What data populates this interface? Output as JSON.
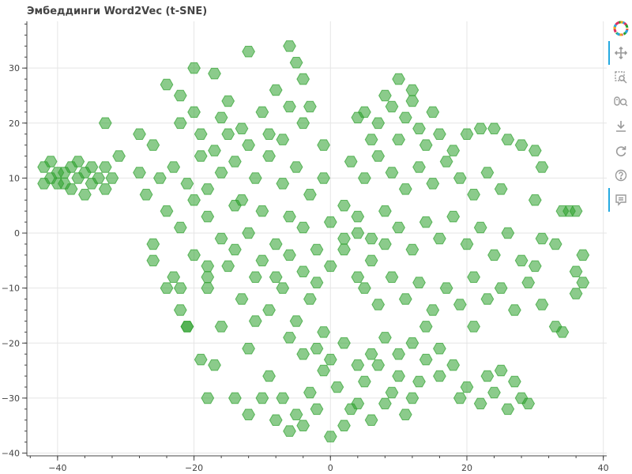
{
  "chart_title": "Эмбеддинги Word2Vec (t-SNE)",
  "toolbar": {
    "items": [
      {
        "name": "bokeh-logo-icon",
        "active": false
      },
      {
        "name": "pan-icon",
        "active": true
      },
      {
        "name": "box-zoom-icon",
        "active": false
      },
      {
        "name": "wheel-zoom-icon",
        "active": false
      },
      {
        "name": "save-icon",
        "active": false
      },
      {
        "name": "reset-icon",
        "active": false
      },
      {
        "name": "help-icon",
        "active": false
      },
      {
        "name": "hover-icon",
        "active": true
      }
    ]
  },
  "chart_data": {
    "type": "scatter",
    "marker": "hex",
    "title": "Эмбеддинги Word2Vec (t-SNE)",
    "xlabel": "",
    "ylabel": "",
    "xlim": [
      -44.5,
      40.5
    ],
    "ylim": [
      -40.5,
      38.5
    ],
    "xticks": [
      -40,
      -20,
      0,
      20,
      40
    ],
    "yticks": [
      30,
      20,
      10,
      0,
      -10,
      -20,
      -30,
      -40
    ],
    "grid": true,
    "colors": {
      "marker": "#2ca02c",
      "grid": "#e5e5e5",
      "axis": "#444444"
    },
    "marker_alpha": 0.55,
    "points": [
      [
        -42,
        12
      ],
      [
        -41,
        10
      ],
      [
        -40,
        11
      ],
      [
        -39,
        9
      ],
      [
        -38,
        12
      ],
      [
        -37,
        10
      ],
      [
        -36,
        11
      ],
      [
        -35,
        9
      ],
      [
        -34,
        10
      ],
      [
        -33,
        12
      ],
      [
        -41,
        13
      ],
      [
        -39,
        11
      ],
      [
        -37,
        13
      ],
      [
        -38,
        8
      ],
      [
        -36,
        7
      ],
      [
        -40,
        9
      ],
      [
        -35,
        12
      ],
      [
        -32,
        10
      ],
      [
        -33,
        8
      ],
      [
        -42,
        9
      ],
      [
        -33,
        20
      ],
      [
        -31,
        14
      ],
      [
        -28,
        11
      ],
      [
        -28,
        18
      ],
      [
        -27,
        7
      ],
      [
        -24,
        27
      ],
      [
        -20,
        30
      ],
      [
        -17,
        29
      ],
      [
        -12,
        33
      ],
      [
        -6,
        34
      ],
      [
        -5,
        31
      ],
      [
        -4,
        28
      ],
      [
        -8,
        26
      ],
      [
        -15,
        24
      ],
      [
        -22,
        25
      ],
      [
        -26,
        16
      ],
      [
        -25,
        10
      ],
      [
        -23,
        12
      ],
      [
        -21,
        9
      ],
      [
        -19,
        14
      ],
      [
        -18,
        8
      ],
      [
        -16,
        11
      ],
      [
        -14,
        13
      ],
      [
        -13,
        6
      ],
      [
        -11,
        10
      ],
      [
        -9,
        14
      ],
      [
        -7,
        9
      ],
      [
        -5,
        12
      ],
      [
        -3,
        7
      ],
      [
        -1,
        10
      ],
      [
        -24,
        4
      ],
      [
        -22,
        1
      ],
      [
        -20,
        6
      ],
      [
        -18,
        3
      ],
      [
        -16,
        -1
      ],
      [
        -14,
        5
      ],
      [
        -12,
        0
      ],
      [
        -10,
        4
      ],
      [
        -8,
        -2
      ],
      [
        -6,
        3
      ],
      [
        -4,
        1
      ],
      [
        -2,
        -3
      ],
      [
        0,
        2
      ],
      [
        2,
        5
      ],
      [
        4,
        0
      ],
      [
        -22,
        20
      ],
      [
        -19,
        18
      ],
      [
        -16,
        21
      ],
      [
        -13,
        19
      ],
      [
        -10,
        22
      ],
      [
        -7,
        17
      ],
      [
        -4,
        20
      ],
      [
        -1,
        16
      ],
      [
        -12,
        16
      ],
      [
        -17,
        15
      ],
      [
        -9,
        18
      ],
      [
        -6,
        23
      ],
      [
        -20,
        22
      ],
      [
        -15,
        18
      ],
      [
        -3,
        23
      ],
      [
        -26,
        -5
      ],
      [
        -23,
        -8
      ],
      [
        -20,
        -4
      ],
      [
        -18,
        -10
      ],
      [
        -15,
        -6
      ],
      [
        -13,
        -12
      ],
      [
        -11,
        -8
      ],
      [
        -9,
        -14
      ],
      [
        -7,
        -10
      ],
      [
        -5,
        -16
      ],
      [
        -3,
        -12
      ],
      [
        -1,
        -18
      ],
      [
        -21,
        -17
      ],
      [
        -16,
        -17
      ],
      [
        -11,
        -16
      ],
      [
        -26,
        -2
      ],
      [
        -24,
        -10
      ],
      [
        -22,
        -14
      ],
      [
        -18,
        -6
      ],
      [
        -14,
        -3
      ],
      [
        -10,
        -5
      ],
      [
        -8,
        -8
      ],
      [
        -6,
        -4
      ],
      [
        -4,
        -7
      ],
      [
        -2,
        -9
      ],
      [
        0,
        -6
      ],
      [
        2,
        -3
      ],
      [
        4,
        -8
      ],
      [
        6,
        -5
      ],
      [
        8,
        -2
      ],
      [
        -19,
        -23
      ],
      [
        -17,
        -24
      ],
      [
        -12,
        -21
      ],
      [
        -9,
        -26
      ],
      [
        -7,
        -30
      ],
      [
        -5,
        -33
      ],
      [
        -3,
        -29
      ],
      [
        -1,
        -25
      ],
      [
        1,
        -28
      ],
      [
        3,
        -32
      ],
      [
        5,
        -27
      ],
      [
        7,
        -24
      ],
      [
        9,
        -29
      ],
      [
        11,
        -33
      ],
      [
        13,
        -27
      ],
      [
        -10,
        -30
      ],
      [
        -8,
        -34
      ],
      [
        -6,
        -36
      ],
      [
        -4,
        -35
      ],
      [
        -2,
        -32
      ],
      [
        0,
        -37
      ],
      [
        2,
        -35
      ],
      [
        4,
        -31
      ],
      [
        6,
        -34
      ],
      [
        8,
        -31
      ],
      [
        -14,
        -30
      ],
      [
        -12,
        -33
      ],
      [
        -18,
        -30
      ],
      [
        10,
        -26
      ],
      [
        12,
        -30
      ],
      [
        -2,
        -21
      ],
      [
        0,
        -23
      ],
      [
        2,
        -20
      ],
      [
        4,
        -24
      ],
      [
        6,
        -22
      ],
      [
        8,
        -19
      ],
      [
        10,
        -22
      ],
      [
        12,
        -20
      ],
      [
        14,
        -23
      ],
      [
        16,
        -21
      ],
      [
        -4,
        -22
      ],
      [
        -6,
        -19
      ],
      [
        18,
        -24
      ],
      [
        14,
        -17
      ],
      [
        16,
        -26
      ],
      [
        5,
        22
      ],
      [
        7,
        20
      ],
      [
        9,
        23
      ],
      [
        11,
        21
      ],
      [
        13,
        19
      ],
      [
        15,
        22
      ],
      [
        8,
        25
      ],
      [
        10,
        17
      ],
      [
        12,
        24
      ],
      [
        14,
        16
      ],
      [
        16,
        18
      ],
      [
        6,
        17
      ],
      [
        4,
        21
      ],
      [
        10,
        28
      ],
      [
        12,
        26
      ],
      [
        3,
        13
      ],
      [
        5,
        10
      ],
      [
        7,
        14
      ],
      [
        9,
        11
      ],
      [
        11,
        8
      ],
      [
        13,
        12
      ],
      [
        15,
        9
      ],
      [
        17,
        13
      ],
      [
        19,
        10
      ],
      [
        21,
        7
      ],
      [
        23,
        11
      ],
      [
        25,
        8
      ],
      [
        18,
        15
      ],
      [
        20,
        18
      ],
      [
        22,
        19
      ],
      [
        24,
        19
      ],
      [
        26,
        17
      ],
      [
        28,
        16
      ],
      [
        30,
        15
      ],
      [
        31,
        12
      ],
      [
        30,
        6
      ],
      [
        34,
        4
      ],
      [
        35,
        4
      ],
      [
        36,
        4
      ],
      [
        33,
        -2
      ],
      [
        31,
        -1
      ],
      [
        37,
        -4
      ],
      [
        36,
        -7
      ],
      [
        37,
        -9
      ],
      [
        36,
        -11
      ],
      [
        2,
        -1
      ],
      [
        4,
        3
      ],
      [
        6,
        -1
      ],
      [
        8,
        4
      ],
      [
        10,
        1
      ],
      [
        12,
        -3
      ],
      [
        14,
        2
      ],
      [
        16,
        -1
      ],
      [
        18,
        3
      ],
      [
        20,
        -2
      ],
      [
        22,
        1
      ],
      [
        24,
        -4
      ],
      [
        26,
        0
      ],
      [
        28,
        -5
      ],
      [
        30,
        -6
      ],
      [
        5,
        -10
      ],
      [
        7,
        -13
      ],
      [
        9,
        -8
      ],
      [
        11,
        -12
      ],
      [
        13,
        -9
      ],
      [
        15,
        -14
      ],
      [
        17,
        -10
      ],
      [
        19,
        -13
      ],
      [
        21,
        -8
      ],
      [
        23,
        -12
      ],
      [
        25,
        -10
      ],
      [
        27,
        -14
      ],
      [
        29,
        -9
      ],
      [
        31,
        -13
      ],
      [
        21,
        -17
      ],
      [
        20,
        -28
      ],
      [
        22,
        -31
      ],
      [
        24,
        -29
      ],
      [
        26,
        -32
      ],
      [
        28,
        -30
      ],
      [
        25,
        -25
      ],
      [
        27,
        -27
      ],
      [
        29,
        -31
      ],
      [
        23,
        -26
      ],
      [
        19,
        -30
      ],
      [
        -22,
        -10
      ],
      [
        -21,
        -17
      ],
      [
        -18,
        -8
      ],
      [
        33,
        -17
      ],
      [
        34,
        -18
      ]
    ]
  }
}
